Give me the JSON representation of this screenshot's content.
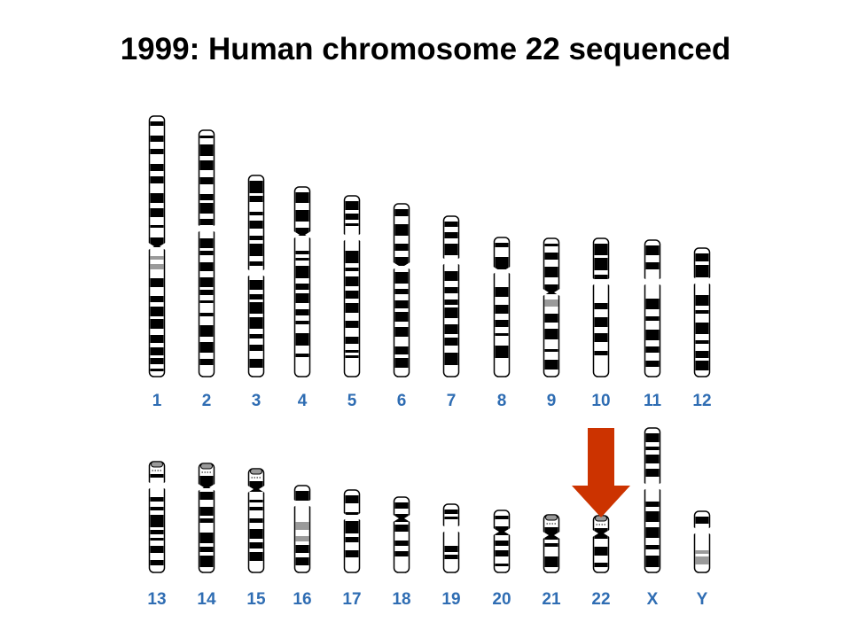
{
  "title": "1999: Human chromosome 22 sequenced",
  "colors": {
    "label": "#2f6db3",
    "band_dark": "#000000",
    "band_light": "#ffffff",
    "band_gray": "#9a9a9a",
    "arrow": "#cc3300"
  },
  "highlight_arrow": {
    "target": "22"
  },
  "chromosome_rows": [
    {
      "row": "top",
      "chromosomes": [
        "1",
        "2",
        "3",
        "4",
        "5",
        "6",
        "7",
        "8",
        "9",
        "10",
        "11",
        "12"
      ]
    },
    {
      "row": "bottom",
      "chromosomes": [
        "13",
        "14",
        "15",
        "16",
        "17",
        "18",
        "19",
        "20",
        "21",
        "22",
        "X",
        "Y"
      ]
    }
  ]
}
